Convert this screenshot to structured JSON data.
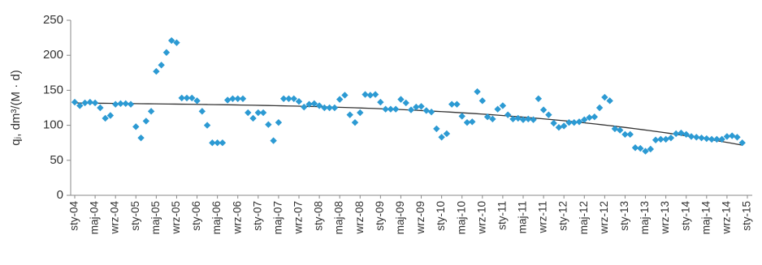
{
  "chart_data": {
    "type": "scatter",
    "y_label": "qⱼ, dm³/(M · d)",
    "categories": [
      "sty-04",
      null,
      null,
      null,
      "maj-04",
      null,
      null,
      null,
      "wrz-04",
      null,
      null,
      null,
      "sty-05",
      null,
      null,
      null,
      "maj-05",
      null,
      null,
      null,
      "wrz-05",
      null,
      null,
      null,
      "sty-06",
      null,
      null,
      null,
      "maj-06",
      null,
      null,
      null,
      "wrz-06",
      null,
      null,
      null,
      "sty-07",
      null,
      null,
      null,
      "maj-07",
      null,
      null,
      null,
      "wrz-07",
      null,
      null,
      null,
      "sty-08",
      null,
      null,
      null,
      "maj-08",
      null,
      null,
      null,
      "wrz-08",
      null,
      null,
      null,
      "sty-09",
      null,
      null,
      null,
      "maj-09",
      null,
      null,
      null,
      "wrz-09",
      null,
      null,
      null,
      "sty-10",
      null,
      null,
      null,
      "maj-10",
      null,
      null,
      null,
      "wrz-10",
      null,
      null,
      null,
      "sty-11",
      null,
      null,
      null,
      "maj-11",
      null,
      null,
      null,
      "wrz-11",
      null,
      null,
      null,
      "sty-12",
      null,
      null,
      null,
      "maj-12",
      null,
      null,
      null,
      "wrz-12",
      null,
      null,
      null,
      "sty-13",
      null,
      null,
      null,
      "maj-13",
      null,
      null,
      null,
      "wrz-13",
      null,
      null,
      null,
      "sty-14",
      null,
      null,
      null,
      "maj-14",
      null,
      null,
      null,
      "wrz-14",
      null,
      null,
      null,
      "sty-15"
    ],
    "values": [
      133,
      128,
      132,
      133,
      132,
      125,
      110,
      114,
      130,
      131,
      131,
      130,
      98,
      82,
      106,
      120,
      177,
      186,
      204,
      221,
      218,
      139,
      139,
      139,
      135,
      120,
      100,
      75,
      75,
      75,
      136,
      138,
      138,
      138,
      118,
      110,
      118,
      118,
      101,
      78,
      104,
      138,
      138,
      138,
      134,
      126,
      130,
      131,
      128,
      125,
      125,
      125,
      137,
      143,
      115,
      104,
      118,
      144,
      143,
      144,
      133,
      123,
      123,
      123,
      137,
      132,
      122,
      126,
      127,
      121,
      119,
      95,
      83,
      88,
      130,
      130,
      113,
      104,
      105,
      148,
      135,
      112,
      109,
      123,
      128,
      115,
      109,
      110,
      108,
      109,
      108,
      138,
      122,
      115,
      103,
      97,
      99,
      104,
      104,
      105,
      108,
      111,
      112,
      125,
      140,
      135,
      95,
      93,
      87,
      87,
      68,
      67,
      63,
      66,
      79,
      80,
      80,
      82,
      88,
      89,
      87,
      84,
      83,
      82,
      81,
      80,
      80,
      80,
      84,
      85,
      83,
      75,
      null
    ],
    "color": "#2c9ad3",
    "trend": {
      "type": "polynomial",
      "order": 3,
      "color": "#333333"
    },
    "ylim": [
      0,
      250
    ],
    "yticks": [
      0,
      50,
      100,
      150,
      200,
      250
    ]
  }
}
